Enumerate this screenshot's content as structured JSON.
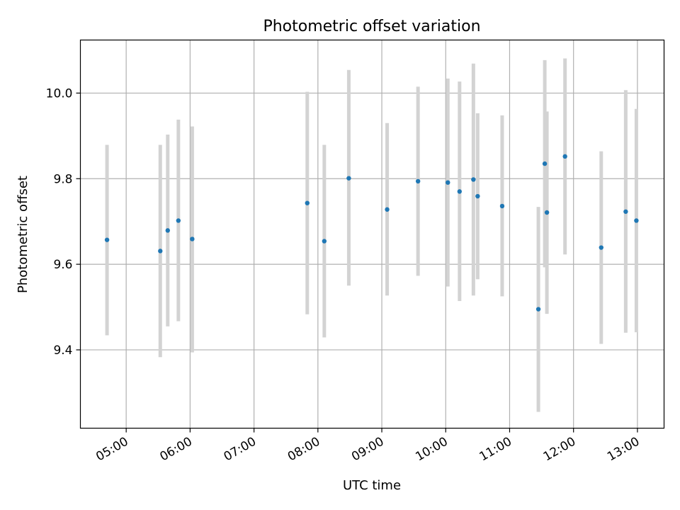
{
  "chart_data": {
    "type": "scatter",
    "title": "Photometric offset variation",
    "xlabel": "UTC time",
    "ylabel": "Photometric offset",
    "xlim": [
      "04:17",
      "13:25"
    ],
    "ylim": [
      9.217,
      10.124
    ],
    "grid": true,
    "x_ticks": [
      "05:00",
      "06:00",
      "07:00",
      "08:00",
      "09:00",
      "10:00",
      "11:00",
      "12:00",
      "13:00"
    ],
    "y_ticks": [
      9.4,
      9.6,
      9.8,
      10.0
    ],
    "y_tick_labels": [
      "9.4",
      "9.6",
      "9.8",
      "10.0"
    ],
    "colors": {
      "points": "#1f77b4",
      "errorbars": "#d3d3d3",
      "grid": "#b0b0b0"
    },
    "points": [
      {
        "x": "04:42",
        "y": 9.657,
        "err_low": 9.434,
        "err_high": 9.879
      },
      {
        "x": "05:32",
        "y": 9.631,
        "err_low": 9.383,
        "err_high": 9.879
      },
      {
        "x": "05:39",
        "y": 9.679,
        "err_low": 9.455,
        "err_high": 9.903
      },
      {
        "x": "05:49",
        "y": 9.702,
        "err_low": 9.467,
        "err_high": 9.938
      },
      {
        "x": "06:02",
        "y": 9.659,
        "err_low": 9.394,
        "err_high": 9.922
      },
      {
        "x": "07:50",
        "y": 9.743,
        "err_low": 9.483,
        "err_high": 10.003
      },
      {
        "x": "08:06",
        "y": 9.654,
        "err_low": 9.429,
        "err_high": 9.879
      },
      {
        "x": "08:29",
        "y": 9.801,
        "err_low": 9.55,
        "err_high": 10.054
      },
      {
        "x": "09:05",
        "y": 9.728,
        "err_low": 9.527,
        "err_high": 9.93
      },
      {
        "x": "09:34",
        "y": 9.794,
        "err_low": 9.573,
        "err_high": 10.015
      },
      {
        "x": "10:02",
        "y": 9.791,
        "err_low": 9.548,
        "err_high": 10.034
      },
      {
        "x": "10:13",
        "y": 9.77,
        "err_low": 9.514,
        "err_high": 10.027
      },
      {
        "x": "10:26",
        "y": 9.798,
        "err_low": 9.527,
        "err_high": 10.069
      },
      {
        "x": "10:30",
        "y": 9.759,
        "err_low": 9.565,
        "err_high": 9.953
      },
      {
        "x": "10:53",
        "y": 9.736,
        "err_low": 9.525,
        "err_high": 9.948
      },
      {
        "x": "11:27",
        "y": 9.495,
        "err_low": 9.255,
        "err_high": 9.734
      },
      {
        "x": "11:33",
        "y": 9.835,
        "err_low": 9.593,
        "err_high": 10.077
      },
      {
        "x": "11:35",
        "y": 9.721,
        "err_low": 9.484,
        "err_high": 9.957
      },
      {
        "x": "11:52",
        "y": 9.852,
        "err_low": 9.623,
        "err_high": 10.081
      },
      {
        "x": "12:26",
        "y": 9.639,
        "err_low": 9.414,
        "err_high": 9.864
      },
      {
        "x": "12:49",
        "y": 9.723,
        "err_low": 9.44,
        "err_high": 10.007
      },
      {
        "x": "12:59",
        "y": 9.702,
        "err_low": 9.441,
        "err_high": 9.963
      }
    ]
  }
}
